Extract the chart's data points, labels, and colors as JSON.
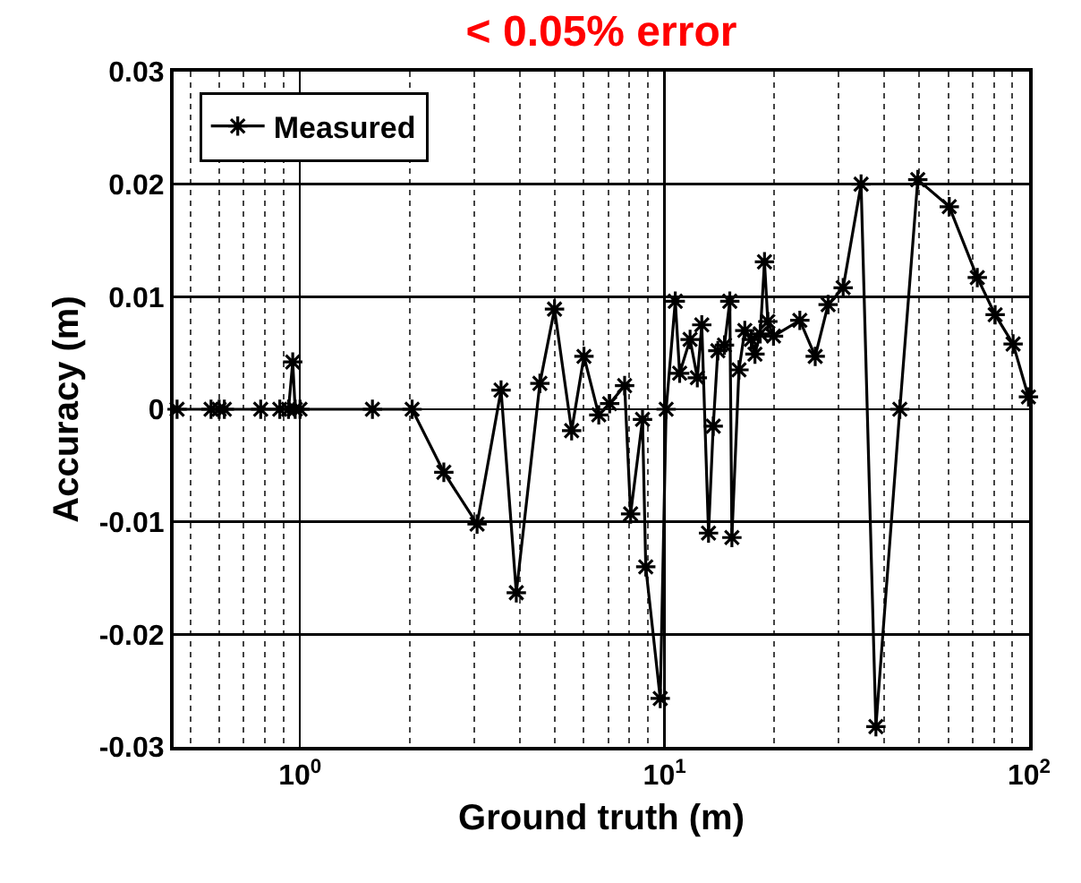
{
  "chart_data": {
    "type": "line",
    "title": "< 0.05% error",
    "xlabel": "Ground truth (m)",
    "ylabel": "Accuracy (m)",
    "log": "x",
    "x": [
      0.46,
      0.57,
      0.6,
      0.62,
      0.78,
      0.88,
      0.93,
      0.955,
      0.97,
      1.0,
      1.58,
      2.03,
      2.48,
      3.06,
      3.56,
      3.92,
      4.55,
      4.99,
      5.56,
      6.01,
      6.6,
      7.07,
      7.77,
      8.07,
      8.7,
      8.88,
      9.73,
      10.1,
      10.7,
      11.0,
      11.75,
      12.3,
      12.65,
      13.2,
      13.6,
      14.0,
      14.6,
      15.1,
      15.3,
      16.0,
      16.6,
      17.3,
      17.7,
      18.3,
      18.8,
      19.2,
      19.9,
      23.5,
      25.9,
      28.1,
      30.9,
      34.6,
      38.0,
      44.2,
      49.5,
      60.4,
      72.1,
      80.7,
      90.4,
      99.6
    ],
    "series": [
      {
        "name": "Measured",
        "color": "#000000",
        "values": [
          0,
          0,
          0,
          0,
          0,
          0,
          0,
          0.0042,
          0,
          0,
          0,
          0,
          -0.0056,
          -0.0102,
          0.0017,
          -0.0163,
          0.0023,
          0.0089,
          -0.0019,
          0.0047,
          -0.0005,
          0.0005,
          0.0021,
          -0.0093,
          -0.0009,
          -0.014,
          -0.0257,
          0,
          0.0096,
          0.0032,
          0.0062,
          0.0028,
          0.0075,
          -0.011,
          -0.0015,
          0.0052,
          0.0057,
          0.0096,
          -0.0114,
          0.0035,
          0.007,
          0.0062,
          0.0049,
          0.0067,
          0.0131,
          0.0078,
          0.0065,
          0.0079,
          0.0047,
          0.0093,
          0.0108,
          0.02,
          -0.0282,
          0,
          0.0204,
          0.018,
          0.0117,
          0.0084,
          0.0058,
          0.0011
        ]
      }
    ],
    "xlim": [
      0.45,
      100
    ],
    "xticks": [
      {
        "value": 1,
        "label": "10$^{0}$"
      },
      {
        "value": 10,
        "label": "10$^{1}$"
      },
      {
        "value": 100,
        "label": "10$^{2}$"
      }
    ],
    "ylim": [
      -0.03,
      0.03
    ],
    "yticks": [
      -0.03,
      -0.02,
      -0.01,
      0,
      0.01,
      0.02,
      0.03
    ],
    "grid": true,
    "legend": "top left",
    "marker": "cross",
    "line_style": "solid"
  }
}
